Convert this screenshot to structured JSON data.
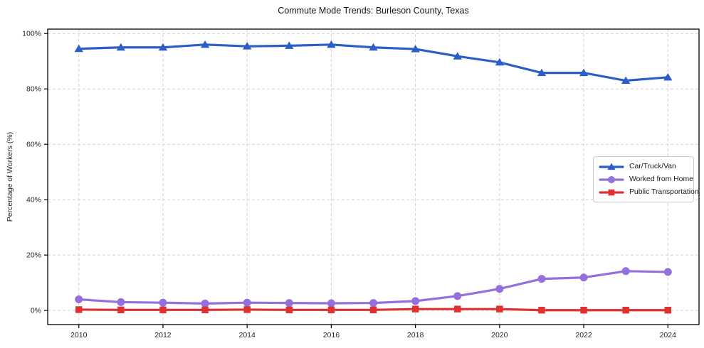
{
  "chart_data": {
    "type": "line",
    "title": "Commute Mode Trends: Burleson County, Texas",
    "xlabel": "",
    "ylabel": "Percentage of Workers (%)",
    "x": [
      2010,
      2011,
      2012,
      2013,
      2014,
      2015,
      2016,
      2017,
      2018,
      2019,
      2020,
      2021,
      2022,
      2023,
      2024
    ],
    "series": [
      {
        "name": "Car/Truck/Van",
        "marker": "triangle",
        "color": "#2b5fc7",
        "values": [
          94.5,
          95.0,
          95.0,
          96.0,
          95.4,
          95.6,
          96.0,
          95.0,
          94.4,
          91.8,
          89.6,
          85.8,
          85.8,
          83.0,
          84.2
        ]
      },
      {
        "name": "Worked from Home",
        "marker": "circle",
        "color": "#9370db",
        "values": [
          4.0,
          3.0,
          2.8,
          2.5,
          2.8,
          2.7,
          2.6,
          2.7,
          3.4,
          5.2,
          7.8,
          11.4,
          11.9,
          14.2,
          13.9
        ]
      },
      {
        "name": "Public Transportation",
        "marker": "square",
        "color": "#e03131",
        "values": [
          0.3,
          0.2,
          0.2,
          0.2,
          0.3,
          0.2,
          0.2,
          0.2,
          0.5,
          0.5,
          0.5,
          0.1,
          0.1,
          0.1,
          0.1
        ]
      }
    ],
    "x_ticks": [
      2010,
      2012,
      2014,
      2016,
      2018,
      2020,
      2022,
      2024
    ],
    "y_ticks": [
      0,
      20,
      40,
      60,
      80,
      100
    ],
    "y_tick_suffix": "%",
    "xlim": [
      2009.26,
      2024.74
    ],
    "ylim": [
      -5.1,
      101.6
    ],
    "grid": true,
    "grid_style": "dashed",
    "legend_position": "center-right"
  }
}
